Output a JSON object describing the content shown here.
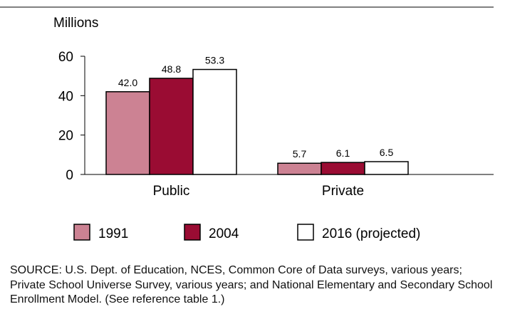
{
  "chart_data": {
    "type": "bar",
    "ylabel": "Millions",
    "ylim": [
      0,
      60
    ],
    "yticks": [
      0,
      20,
      40,
      60
    ],
    "categories": [
      "Public",
      "Private"
    ],
    "series": [
      {
        "name": "1991",
        "values": [
          42.0,
          5.7
        ],
        "labels": [
          "42.0",
          "5.7"
        ],
        "color": "#cc8293"
      },
      {
        "name": "2004",
        "values": [
          48.8,
          6.1
        ],
        "labels": [
          "48.8",
          "6.1"
        ],
        "color": "#9a0c33"
      },
      {
        "name": "2016 (projected)",
        "values": [
          53.3,
          6.5
        ],
        "labels": [
          "53.3",
          "6.5"
        ],
        "color": "#ffffff"
      }
    ],
    "legend_position": "bottom",
    "grid": false
  },
  "source_note": "SOURCE: U.S. Dept. of Education, NCES, Common Core of Data surveys, various years; Private School Universe Survey, various years; and National Elementary and Secondary School Enrollment Model. (See reference table 1.)"
}
